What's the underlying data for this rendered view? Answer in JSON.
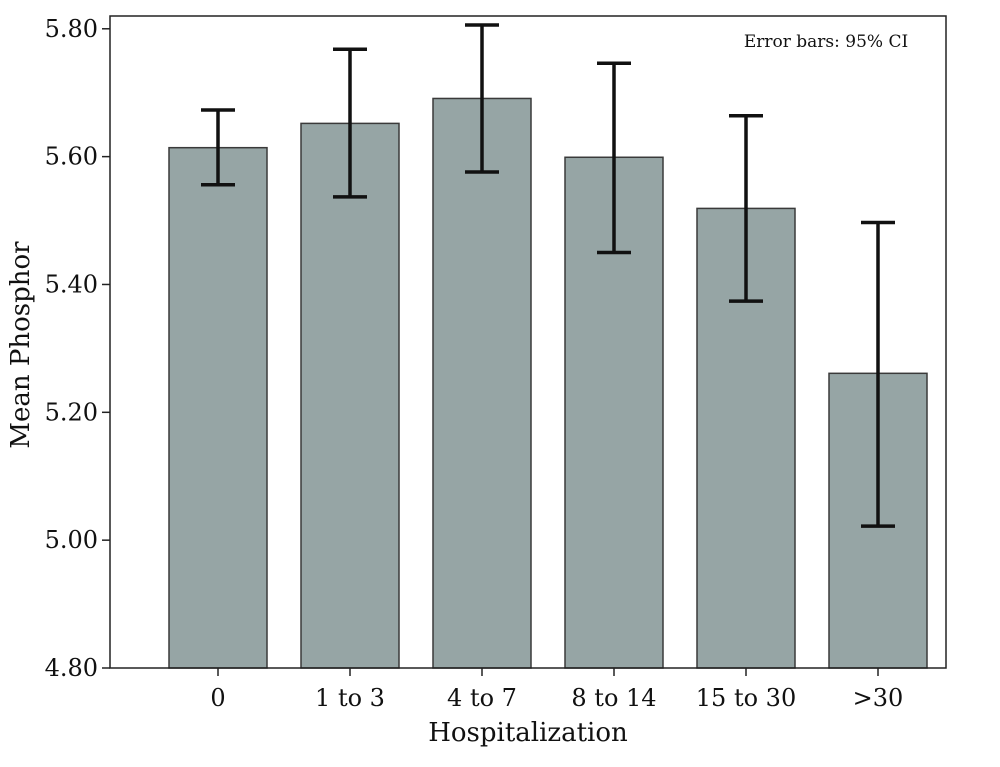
{
  "chart_data": {
    "type": "bar",
    "title": "",
    "xlabel": "Hospitalization",
    "ylabel": "Mean Phosphor",
    "categories": [
      "0",
      "1 to 3",
      "4 to 7",
      "8 to 14",
      "15 to 30",
      ">30"
    ],
    "values": [
      5.614,
      5.652,
      5.691,
      5.599,
      5.519,
      5.261
    ],
    "ci_lower": [
      5.556,
      5.537,
      5.576,
      5.45,
      5.374,
      5.022
    ],
    "ci_upper": [
      5.673,
      5.768,
      5.806,
      5.746,
      5.664,
      5.497
    ],
    "ylim": [
      4.8,
      5.82
    ],
    "yticks": [
      "4.80",
      "5.00",
      "5.20",
      "5.40",
      "5.60",
      "5.80"
    ],
    "annotation": "Error bars: 95% CI",
    "grid": false,
    "colors": {
      "bar_fill": "#96a5a5",
      "bar_stroke": "#3a3a3a",
      "error_bar": "#111111",
      "axis": "#222222"
    }
  }
}
